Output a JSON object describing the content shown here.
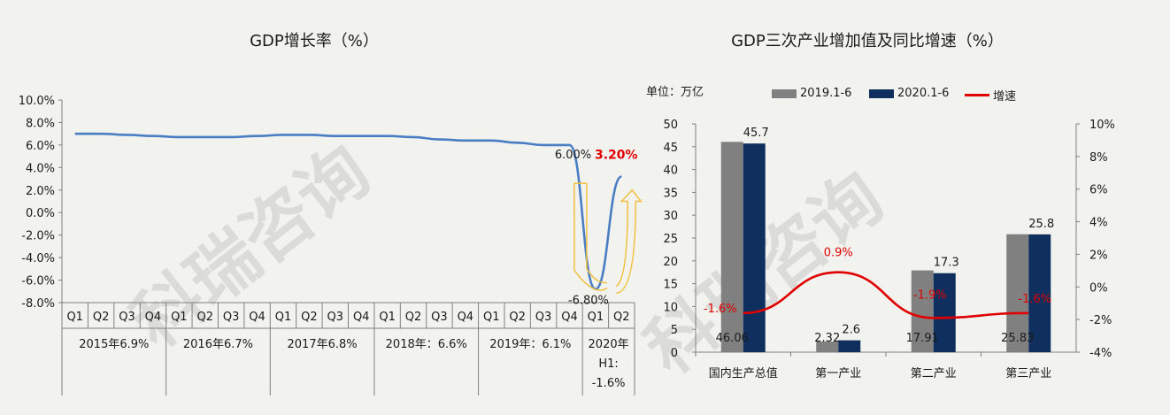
{
  "watermark": "科瑞咨询",
  "chart_data": [
    {
      "type": "line",
      "title": "GDP增长率（%）",
      "ylim": [
        -8,
        10
      ],
      "y_ticks": [
        "10.0%",
        "8.0%",
        "6.0%",
        "4.0%",
        "2.0%",
        "0.0%",
        "-2.0%",
        "-4.0%",
        "-6.0%",
        "-8.0%"
      ],
      "categories": [
        "Q1",
        "Q2",
        "Q3",
        "Q4",
        "Q1",
        "Q2",
        "Q3",
        "Q4",
        "Q1",
        "Q2",
        "Q3",
        "Q4",
        "Q1",
        "Q2",
        "Q3",
        "Q4",
        "Q1",
        "Q2",
        "Q3",
        "Q4",
        "Q1",
        "Q2"
      ],
      "groups": [
        "2015年6.9%",
        "2016年6.7%",
        "2017年6.8%",
        "2018年：6.6%",
        "2019年：6.1%",
        "2020年H1:-1.6%"
      ],
      "values": [
        7.0,
        7.0,
        6.9,
        6.8,
        6.7,
        6.7,
        6.7,
        6.8,
        6.9,
        6.9,
        6.8,
        6.8,
        6.8,
        6.7,
        6.5,
        6.4,
        6.4,
        6.2,
        6.0,
        6.0,
        -6.8,
        3.2
      ],
      "point_labels": [
        {
          "index": 19,
          "text": "6.00%"
        },
        {
          "index": 20,
          "text": "-6.80%"
        },
        {
          "index": 21,
          "text": "3.20%"
        }
      ],
      "grid": false
    },
    {
      "type": "bar",
      "title": "GDP三次产业增加值及同比增速（%）",
      "unit_label": "单位：万亿",
      "categories": [
        "国内生产总值",
        "第一产业",
        "第二产业",
        "第三产业"
      ],
      "series": [
        {
          "name": "2019.1-6",
          "values": [
            46.06,
            2.32,
            17.91,
            25.83
          ],
          "labels": [
            "46.06",
            "2.32",
            "17.91",
            "25.83"
          ],
          "color": "#808080"
        },
        {
          "name": "2020.1-6",
          "values": [
            45.7,
            2.6,
            17.3,
            25.8
          ],
          "labels": [
            "45.7",
            "2.6",
            "17.3",
            "25.8"
          ],
          "color": "#0f2f5f"
        },
        {
          "name": "增速",
          "type": "line",
          "axis": "right",
          "values": [
            -1.6,
            0.9,
            -1.9,
            -1.6
          ],
          "labels": [
            "-1.6%",
            "0.9%",
            "-1.9%",
            "-1.6%"
          ],
          "color": "#e00000"
        }
      ],
      "ylim": [
        0,
        50
      ],
      "y_ticks": [
        "0",
        "5",
        "10",
        "15",
        "20",
        "25",
        "30",
        "35",
        "40",
        "45",
        "50"
      ],
      "y2lim": [
        -4,
        10
      ],
      "y2_ticks": [
        "-4%",
        "-2%",
        "0%",
        "2%",
        "4%",
        "6%",
        "8%",
        "10%"
      ],
      "legend_position": "top",
      "grid": false
    }
  ]
}
